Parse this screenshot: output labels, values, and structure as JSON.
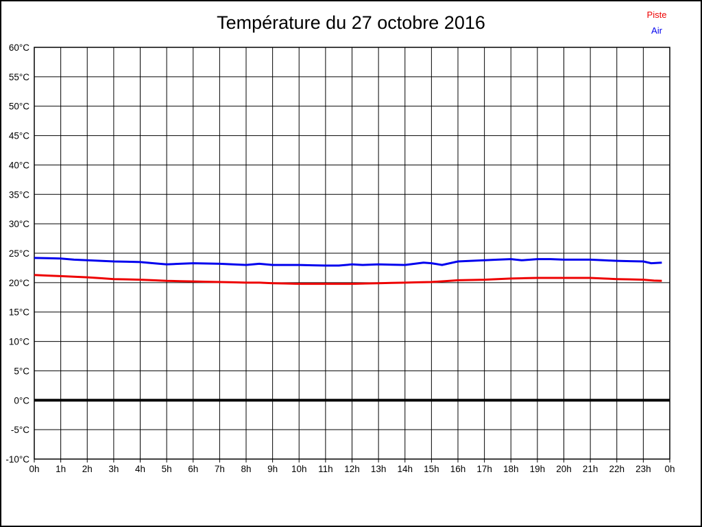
{
  "chart_data": {
    "type": "line",
    "title": "Température du 27 octobre 2016",
    "xlabel": "",
    "ylabel": "",
    "xlim": [
      0,
      24
    ],
    "ylim": [
      -10,
      60
    ],
    "grid": true,
    "grid_color": "#000000",
    "background_color": "#ffffff",
    "zero_line_value": 0,
    "legend_position": "top-right",
    "y_ticks": [
      {
        "v": 60,
        "label": "60°C"
      },
      {
        "v": 55,
        "label": "55°C"
      },
      {
        "v": 50,
        "label": "50°C"
      },
      {
        "v": 45,
        "label": "45°C"
      },
      {
        "v": 40,
        "label": "40°C"
      },
      {
        "v": 35,
        "label": "35°C"
      },
      {
        "v": 30,
        "label": "30°C"
      },
      {
        "v": 25,
        "label": "25°C"
      },
      {
        "v": 20,
        "label": "20°C"
      },
      {
        "v": 15,
        "label": "15°C"
      },
      {
        "v": 10,
        "label": "10°C"
      },
      {
        "v": 5,
        "label": "5°C"
      },
      {
        "v": 0,
        "label": "0°C"
      },
      {
        "v": -5,
        "label": "-5°C"
      },
      {
        "v": -10,
        "label": "-10°C"
      }
    ],
    "x_ticks": [
      {
        "v": 0,
        "label": "0h"
      },
      {
        "v": 1,
        "label": "1h"
      },
      {
        "v": 2,
        "label": "2h"
      },
      {
        "v": 3,
        "label": "3h"
      },
      {
        "v": 4,
        "label": "4h"
      },
      {
        "v": 5,
        "label": "5h"
      },
      {
        "v": 6,
        "label": "6h"
      },
      {
        "v": 7,
        "label": "7h"
      },
      {
        "v": 8,
        "label": "8h"
      },
      {
        "v": 9,
        "label": "9h"
      },
      {
        "v": 10,
        "label": "10h"
      },
      {
        "v": 11,
        "label": "11h"
      },
      {
        "v": 12,
        "label": "12h"
      },
      {
        "v": 13,
        "label": "13h"
      },
      {
        "v": 14,
        "label": "14h"
      },
      {
        "v": 15,
        "label": "15h"
      },
      {
        "v": 16,
        "label": "16h"
      },
      {
        "v": 17,
        "label": "17h"
      },
      {
        "v": 18,
        "label": "18h"
      },
      {
        "v": 19,
        "label": "19h"
      },
      {
        "v": 20,
        "label": "20h"
      },
      {
        "v": 21,
        "label": "21h"
      },
      {
        "v": 22,
        "label": "22h"
      },
      {
        "v": 23,
        "label": "23h"
      },
      {
        "v": 24,
        "label": "0h"
      }
    ],
    "series": [
      {
        "name": "Piste",
        "color": "#ee0000",
        "points": [
          [
            0,
            21.3
          ],
          [
            0.5,
            21.2
          ],
          [
            1,
            21.1
          ],
          [
            1.5,
            21.0
          ],
          [
            2,
            20.9
          ],
          [
            2.5,
            20.75
          ],
          [
            3,
            20.6
          ],
          [
            3.5,
            20.55
          ],
          [
            4,
            20.5
          ],
          [
            4.5,
            20.4
          ],
          [
            5,
            20.3
          ],
          [
            5.5,
            20.25
          ],
          [
            6,
            20.2
          ],
          [
            6.5,
            20.15
          ],
          [
            7,
            20.1
          ],
          [
            7.5,
            20.05
          ],
          [
            8,
            20.0
          ],
          [
            8.5,
            20.0
          ],
          [
            9,
            19.9
          ],
          [
            9.5,
            19.85
          ],
          [
            10,
            19.8
          ],
          [
            11,
            19.8
          ],
          [
            12,
            19.8
          ],
          [
            12.5,
            19.85
          ],
          [
            13,
            19.9
          ],
          [
            13.5,
            19.95
          ],
          [
            14,
            20.0
          ],
          [
            14.5,
            20.05
          ],
          [
            15,
            20.1
          ],
          [
            15.5,
            20.25
          ],
          [
            16,
            20.4
          ],
          [
            16.5,
            20.45
          ],
          [
            17,
            20.5
          ],
          [
            17.5,
            20.6
          ],
          [
            18,
            20.7
          ],
          [
            18.5,
            20.75
          ],
          [
            19,
            20.8
          ],
          [
            20,
            20.8
          ],
          [
            21,
            20.8
          ],
          [
            21.5,
            20.7
          ],
          [
            22,
            20.6
          ],
          [
            22.5,
            20.55
          ],
          [
            23,
            20.5
          ],
          [
            23.4,
            20.35
          ],
          [
            23.7,
            20.3
          ]
        ]
      },
      {
        "name": "Air",
        "color": "#0000ee",
        "points": [
          [
            0,
            24.2
          ],
          [
            0.5,
            24.15
          ],
          [
            1,
            24.1
          ],
          [
            1.5,
            23.9
          ],
          [
            2,
            23.8
          ],
          [
            2.5,
            23.7
          ],
          [
            3,
            23.6
          ],
          [
            3.5,
            23.55
          ],
          [
            4,
            23.5
          ],
          [
            4.5,
            23.3
          ],
          [
            5,
            23.1
          ],
          [
            5.5,
            23.2
          ],
          [
            6,
            23.3
          ],
          [
            6.5,
            23.25
          ],
          [
            7,
            23.2
          ],
          [
            7.5,
            23.1
          ],
          [
            8,
            23.0
          ],
          [
            8.5,
            23.2
          ],
          [
            9,
            23.0
          ],
          [
            9.5,
            23.0
          ],
          [
            10,
            23.0
          ],
          [
            10.5,
            22.95
          ],
          [
            11,
            22.9
          ],
          [
            11.5,
            22.9
          ],
          [
            12,
            23.1
          ],
          [
            12.4,
            23.0
          ],
          [
            13,
            23.1
          ],
          [
            13.5,
            23.05
          ],
          [
            14,
            23.0
          ],
          [
            14.7,
            23.4
          ],
          [
            15,
            23.3
          ],
          [
            15.4,
            23.0
          ],
          [
            16,
            23.6
          ],
          [
            16.5,
            23.7
          ],
          [
            17,
            23.8
          ],
          [
            17.5,
            23.9
          ],
          [
            18,
            24.0
          ],
          [
            18.4,
            23.8
          ],
          [
            19,
            24.0
          ],
          [
            19.5,
            24.0
          ],
          [
            20,
            23.9
          ],
          [
            20.5,
            23.9
          ],
          [
            21,
            23.9
          ],
          [
            21.5,
            23.8
          ],
          [
            22,
            23.7
          ],
          [
            22.5,
            23.65
          ],
          [
            23,
            23.6
          ],
          [
            23.3,
            23.3
          ],
          [
            23.7,
            23.4
          ]
        ]
      }
    ]
  }
}
